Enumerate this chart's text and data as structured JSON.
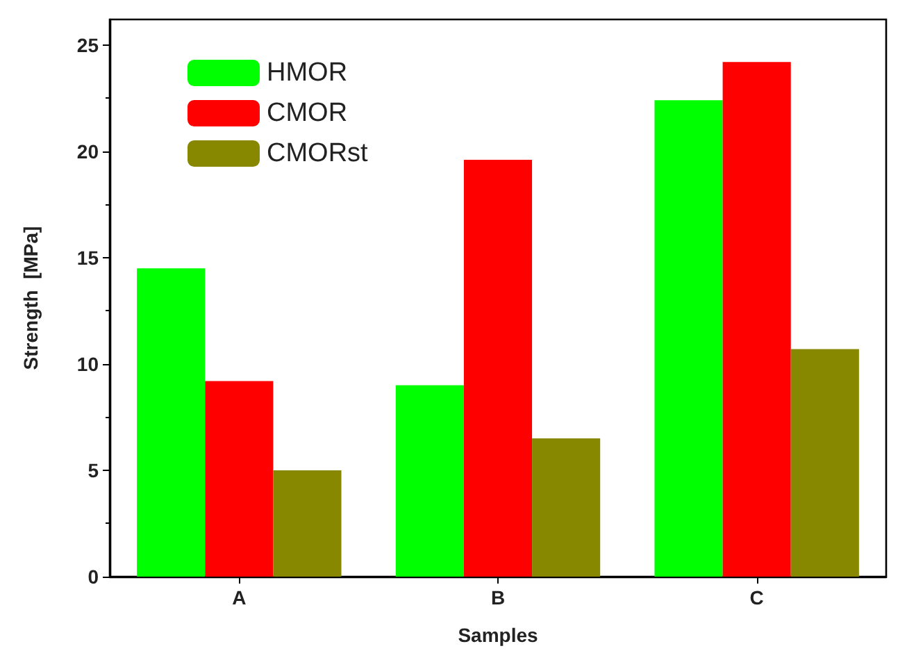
{
  "chart_data": {
    "type": "bar",
    "xlabel": "Samples",
    "ylabel": "Strength  [MPa]",
    "categories": [
      "A",
      "B",
      "C"
    ],
    "series": [
      {
        "name": "HMOR",
        "color": "#00ff00",
        "values": [
          14.5,
          9.0,
          22.4
        ]
      },
      {
        "name": "CMOR",
        "color": "#ff0000",
        "values": [
          9.2,
          19.6,
          24.2
        ]
      },
      {
        "name": "CMORst",
        "color": "#888800",
        "values": [
          5.0,
          6.5,
          10.7
        ]
      }
    ],
    "ylim": [
      0,
      26.2
    ],
    "yticks": [
      0,
      5,
      10,
      15,
      20,
      25
    ],
    "grid": false,
    "legend": "top left"
  }
}
